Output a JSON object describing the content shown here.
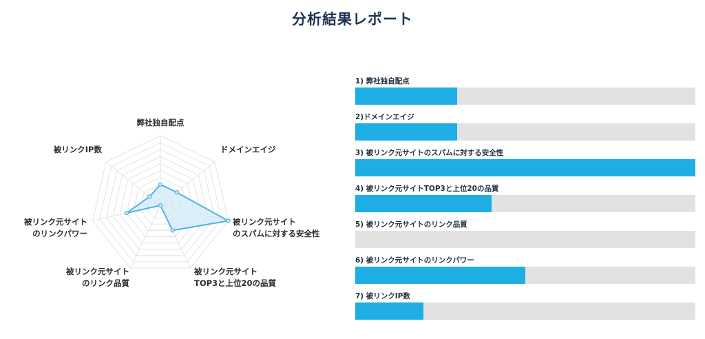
{
  "title": "分析結果レポート",
  "colors": {
    "accent": "#1faee3",
    "track": "#e2e2e2",
    "radar_fill": "#cfeaf7",
    "radar_stroke": "#4fb3e6",
    "grid": "#e3e3e3"
  },
  "chart_data": [
    {
      "type": "radar",
      "axis_labels": [
        [
          "弊社独自配点"
        ],
        [
          "ドメインエイジ"
        ],
        [
          "被リンク元サイト",
          "のスパムに対する安全性"
        ],
        [
          "被リンク元サイト",
          "TOP3と上位20の品質"
        ],
        [
          "被リンク元サイト",
          "のリンク品質"
        ],
        [
          "被リンク元サイト",
          "のリンクパワー"
        ],
        [
          "被リンクIP数"
        ]
      ],
      "values": [
        30,
        30,
        100,
        40,
        0,
        50,
        20
      ],
      "rlim": [
        0,
        100
      ],
      "grid_levels": 10
    },
    {
      "type": "bar",
      "orientation": "horizontal",
      "categories": [
        "1) 弊社独自配点",
        "2)ドメインエイジ",
        "3) 被リンク元サイトのスパムに対する安全性",
        "4) 被リンク元サイトTOP3と上位20の品質",
        "5) 被リンク元サイトのリンク品質",
        "6) 被リンク元サイトのリンクパワー",
        "7) 被リンクIP数"
      ],
      "values": [
        30,
        30,
        100,
        40,
        0,
        50,
        20
      ],
      "xlim": [
        0,
        100
      ]
    }
  ]
}
